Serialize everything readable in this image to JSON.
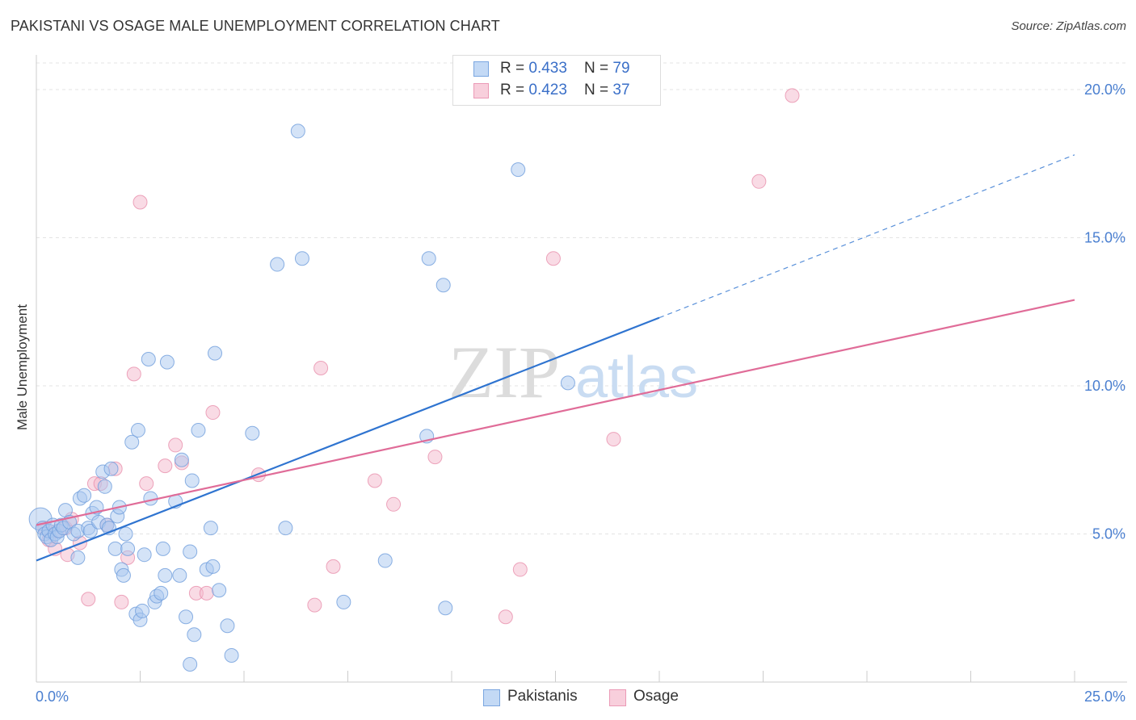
{
  "title": "PAKISTANI VS OSAGE MALE UNEMPLOYMENT CORRELATION CHART",
  "source": "Source: ZipAtlas.com",
  "watermark": {
    "zip": "ZIP",
    "atlas": "atlas"
  },
  "legend": {
    "rows": [
      {
        "r_label": "R = ",
        "r_value": "0.433",
        "n_label": "N = ",
        "n_value": "79"
      },
      {
        "r_label": "R = ",
        "r_value": "0.423",
        "n_label": "N = ",
        "n_value": "37"
      }
    ]
  },
  "colors": {
    "pakistanis": "#a9c8f0",
    "pakistanis_line": "#2f74d0",
    "osage": "#f4b8cb",
    "osage_line": "#e06c98",
    "tick": "#4a7fd0"
  },
  "chart_data": {
    "type": "scatter",
    "title": "PAKISTANI VS OSAGE MALE UNEMPLOYMENT CORRELATION CHART",
    "xlabel": "",
    "ylabel": "Male Unemployment",
    "xlim": [
      0,
      25
    ],
    "ylim": [
      0,
      20.9
    ],
    "x_tick_labels": [
      {
        "value": 0,
        "label": "0.0%"
      },
      {
        "value": 25,
        "label": "25.0%"
      }
    ],
    "y_tick_labels": [
      {
        "value": 5,
        "label": "5.0%"
      },
      {
        "value": 10,
        "label": "10.0%"
      },
      {
        "value": 15,
        "label": "15.0%"
      },
      {
        "value": 20,
        "label": "20.0%"
      }
    ],
    "series": [
      {
        "name": "Pakistanis",
        "points": [
          [
            0.1,
            5.5
          ],
          [
            0.15,
            5.2
          ],
          [
            0.2,
            5.0
          ],
          [
            0.25,
            4.9
          ],
          [
            0.3,
            5.1
          ],
          [
            0.35,
            4.8
          ],
          [
            0.4,
            5.3
          ],
          [
            0.45,
            5.0
          ],
          [
            0.5,
            4.9
          ],
          [
            0.55,
            5.1
          ],
          [
            0.6,
            5.3
          ],
          [
            0.65,
            5.2
          ],
          [
            0.7,
            5.8
          ],
          [
            0.8,
            5.4
          ],
          [
            0.9,
            5.0
          ],
          [
            1.0,
            4.2
          ],
          [
            1.0,
            5.1
          ],
          [
            1.05,
            6.2
          ],
          [
            1.15,
            6.3
          ],
          [
            1.25,
            5.2
          ],
          [
            1.3,
            5.1
          ],
          [
            1.35,
            5.7
          ],
          [
            1.45,
            5.9
          ],
          [
            1.5,
            5.4
          ],
          [
            1.6,
            7.1
          ],
          [
            1.65,
            6.6
          ],
          [
            1.7,
            5.3
          ],
          [
            1.75,
            5.2
          ],
          [
            1.8,
            7.2
          ],
          [
            1.9,
            4.5
          ],
          [
            1.95,
            5.6
          ],
          [
            2.0,
            5.9
          ],
          [
            2.05,
            3.8
          ],
          [
            2.1,
            3.6
          ],
          [
            2.15,
            5.0
          ],
          [
            2.2,
            4.5
          ],
          [
            2.3,
            8.1
          ],
          [
            2.4,
            2.3
          ],
          [
            2.45,
            8.5
          ],
          [
            2.5,
            2.1
          ],
          [
            2.55,
            2.4
          ],
          [
            2.6,
            4.3
          ],
          [
            2.7,
            10.9
          ],
          [
            2.75,
            6.2
          ],
          [
            2.85,
            2.7
          ],
          [
            2.9,
            2.9
          ],
          [
            3.0,
            3.0
          ],
          [
            3.05,
            4.5
          ],
          [
            3.1,
            3.6
          ],
          [
            3.15,
            10.8
          ],
          [
            3.35,
            6.1
          ],
          [
            3.45,
            3.6
          ],
          [
            3.5,
            7.5
          ],
          [
            3.6,
            2.2
          ],
          [
            3.7,
            4.4
          ],
          [
            3.7,
            0.6
          ],
          [
            3.75,
            6.8
          ],
          [
            3.8,
            1.6
          ],
          [
            3.9,
            8.5
          ],
          [
            4.1,
            3.8
          ],
          [
            4.2,
            5.2
          ],
          [
            4.25,
            3.9
          ],
          [
            4.3,
            11.1
          ],
          [
            4.4,
            3.1
          ],
          [
            4.6,
            1.9
          ],
          [
            4.7,
            0.9
          ],
          [
            5.2,
            8.4
          ],
          [
            5.8,
            14.1
          ],
          [
            6.0,
            5.2
          ],
          [
            6.3,
            18.6
          ],
          [
            6.4,
            14.3
          ],
          [
            7.4,
            2.7
          ],
          [
            8.4,
            4.1
          ],
          [
            9.4,
            8.3
          ],
          [
            9.45,
            14.3
          ],
          [
            9.8,
            13.4
          ],
          [
            9.85,
            2.5
          ],
          [
            11.6,
            17.3
          ],
          [
            12.8,
            10.1
          ]
        ],
        "trend": {
          "x0": 0,
          "y0": 4.1,
          "x1": 15,
          "y1": 12.3,
          "dashed_to_x": 25,
          "dashed_to_y": 17.8
        }
      },
      {
        "name": "Osage",
        "points": [
          [
            0.2,
            5.2
          ],
          [
            0.3,
            4.8
          ],
          [
            0.45,
            4.5
          ],
          [
            0.5,
            5.1
          ],
          [
            0.7,
            5.2
          ],
          [
            0.75,
            4.3
          ],
          [
            0.85,
            5.5
          ],
          [
            1.05,
            4.7
          ],
          [
            1.25,
            2.8
          ],
          [
            1.4,
            6.7
          ],
          [
            1.55,
            6.7
          ],
          [
            1.7,
            5.3
          ],
          [
            1.9,
            7.2
          ],
          [
            2.05,
            2.7
          ],
          [
            2.2,
            4.2
          ],
          [
            2.35,
            10.4
          ],
          [
            2.5,
            16.2
          ],
          [
            2.65,
            6.7
          ],
          [
            3.1,
            7.3
          ],
          [
            3.35,
            8.0
          ],
          [
            3.5,
            7.4
          ],
          [
            3.85,
            3.0
          ],
          [
            4.1,
            3.0
          ],
          [
            4.25,
            9.1
          ],
          [
            5.35,
            7.0
          ],
          [
            6.7,
            2.6
          ],
          [
            6.85,
            10.6
          ],
          [
            7.15,
            3.9
          ],
          [
            8.15,
            6.8
          ],
          [
            8.6,
            6.0
          ],
          [
            9.6,
            7.6
          ],
          [
            11.3,
            2.2
          ],
          [
            11.65,
            3.8
          ],
          [
            12.45,
            14.3
          ],
          [
            13.9,
            8.2
          ],
          [
            17.4,
            16.9
          ],
          [
            18.2,
            19.8
          ]
        ],
        "trend": {
          "x0": 0,
          "y0": 5.3,
          "x1": 25,
          "y1": 12.9
        }
      }
    ],
    "legend_entries": [
      "Pakistanis",
      "Osage"
    ],
    "grid": true,
    "legend_position": "top-center"
  }
}
